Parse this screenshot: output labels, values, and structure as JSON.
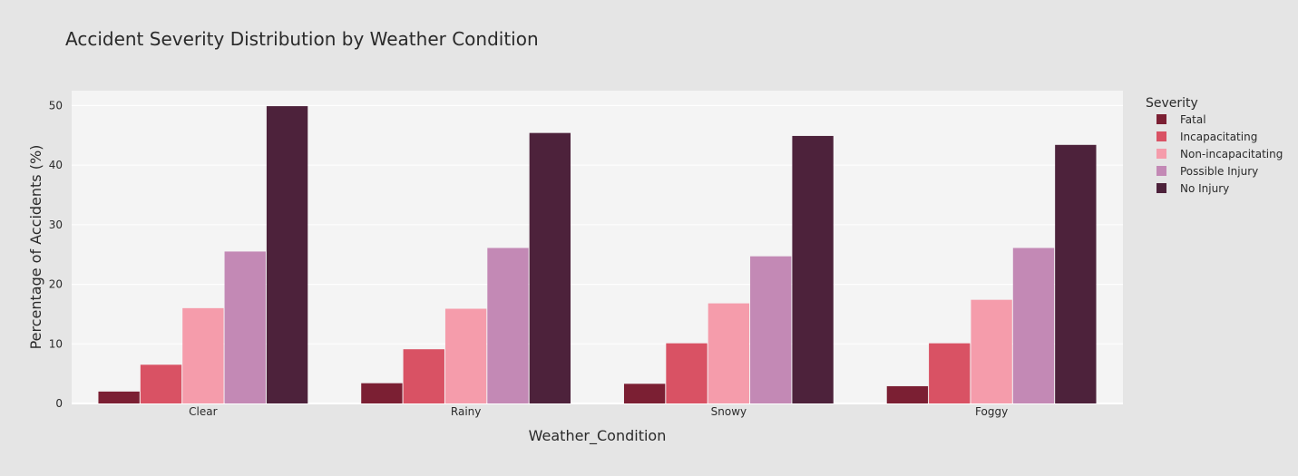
{
  "chart_data": {
    "type": "bar",
    "title": "Accident Severity Distribution by Weather Condition",
    "xlabel": "Weather_Condition",
    "ylabel": "Percentage of Accidents (%)",
    "ylim": [
      0,
      52.5
    ],
    "yticks": [
      0,
      10,
      20,
      30,
      40,
      50
    ],
    "grid": true,
    "legend_title": "Severity",
    "legend_position": "right",
    "categories": [
      "Clear",
      "Rainy",
      "Snowy",
      "Foggy"
    ],
    "series": [
      {
        "name": "Fatal",
        "color": "#7b1f33",
        "values": [
          2.0,
          3.4,
          3.3,
          2.9
        ]
      },
      {
        "name": "Incapacitating",
        "color": "#d95264",
        "values": [
          6.5,
          9.1,
          10.1,
          10.1
        ]
      },
      {
        "name": "Non-incapacitating",
        "color": "#f59cab",
        "values": [
          16.0,
          15.9,
          16.8,
          17.4
        ]
      },
      {
        "name": "Possible Injury",
        "color": "#c389b5",
        "values": [
          25.5,
          26.1,
          24.7,
          26.1
        ]
      },
      {
        "name": "No Injury",
        "color": "#4d223b",
        "values": [
          49.9,
          45.4,
          44.9,
          43.4
        ]
      }
    ]
  },
  "colors": {
    "page_background": "#e5e5e5",
    "plot_background": "#f4f4f4",
    "gridline": "#ffffff"
  }
}
